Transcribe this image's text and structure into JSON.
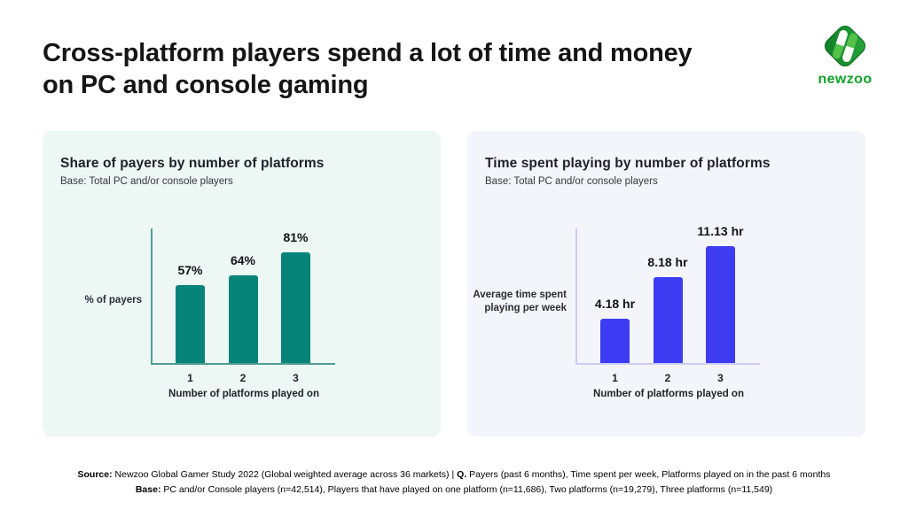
{
  "header": {
    "title_line1": "Cross-platform players spend a lot of time and money",
    "title_line2": "on PC and console gaming"
  },
  "logo": {
    "text": "newzoo",
    "brand_green": "#13a32c"
  },
  "chart_data": [
    {
      "type": "bar",
      "title": "Share of payers by number of platforms",
      "subtitle": "Base: Total PC and/or console players",
      "categories": [
        "1",
        "2",
        "3"
      ],
      "values": [
        57,
        64,
        81
      ],
      "value_labels": [
        "57%",
        "64%",
        "81%"
      ],
      "xlabel": "Number of platforms played on",
      "ylabel": "% of payers",
      "ylabel_lines": [
        "% of payers"
      ],
      "ylim": [
        0,
        100
      ],
      "grid": false,
      "legend": "none",
      "bar_color": "#068479",
      "axis_color": "#4f9f92",
      "card_bg": "#edf7f3"
    },
    {
      "type": "bar",
      "title": "Time spent playing by number of platforms",
      "subtitle": "Base: Total PC and/or console players",
      "categories": [
        "1",
        "2",
        "3"
      ],
      "values": [
        4.18,
        8.18,
        11.13
      ],
      "value_labels": [
        "4.18 hr",
        "8.18 hr",
        "11.13 hr"
      ],
      "xlabel": "Number of platforms played on",
      "ylabel": "Average time spent playing per week",
      "ylabel_lines": [
        "Average time spent",
        "playing per week"
      ],
      "ylim": [
        0,
        13
      ],
      "grid": false,
      "legend": "none",
      "bar_color": "#3d3cf2",
      "axis_color": "#c9cdf1",
      "card_bg": "#f4f4fb"
    }
  ],
  "footer": {
    "line1": [
      {
        "text": "Source:",
        "bold": true
      },
      {
        "text": " Newzoo Global Gamer Study 2022 (Global weighted average across 36 markets)  |  ",
        "bold": false
      },
      {
        "text": "Q.",
        "bold": true
      },
      {
        "text": " Payers (past 6 months), Time spent per week, Platforms played on in the past 6 months",
        "bold": false
      }
    ],
    "line2": [
      {
        "text": "Base:",
        "bold": true
      },
      {
        "text": " PC and/or Console players (n=42,514), Players that have played on one platform (n=11,686), Two platforms (n=19,279), Three platforms (n=11,549)",
        "bold": false
      }
    ]
  }
}
